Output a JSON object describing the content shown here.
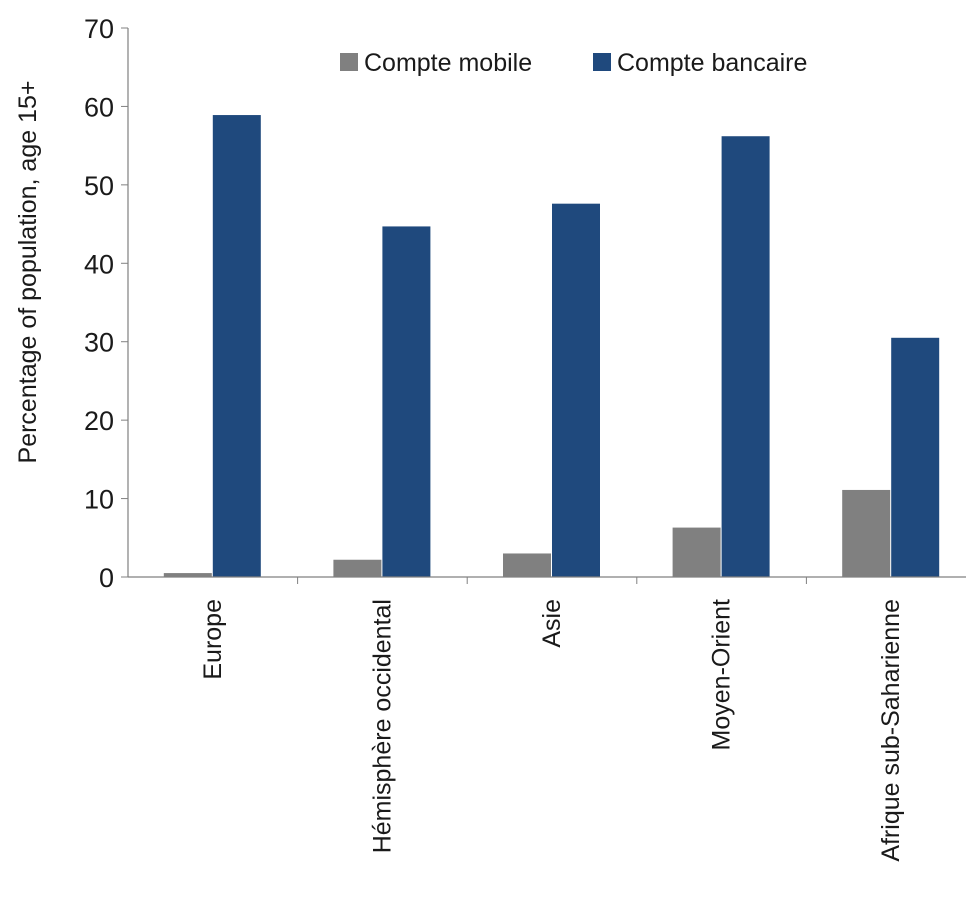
{
  "chart_data": {
    "type": "bar",
    "title": "",
    "xlabel": "",
    "ylabel": "Percentage of population,  age 15+",
    "ylim": [
      0,
      70
    ],
    "yticks": [
      0,
      10,
      20,
      30,
      40,
      50,
      60,
      70
    ],
    "categories": [
      "Europe",
      "Hémisphère occidental",
      "Asie",
      "Moyen-Orient",
      "Afrique sub-Saharienne"
    ],
    "series": [
      {
        "name": "Compte mobile",
        "color": "#808080",
        "values": [
          0.5,
          2.2,
          3.0,
          6.3,
          11.1
        ]
      },
      {
        "name": "Compte bancaire",
        "color": "#1f497d",
        "values": [
          58.9,
          44.7,
          47.6,
          56.2,
          30.5
        ]
      }
    ],
    "legend": "top-right",
    "grid": false
  }
}
